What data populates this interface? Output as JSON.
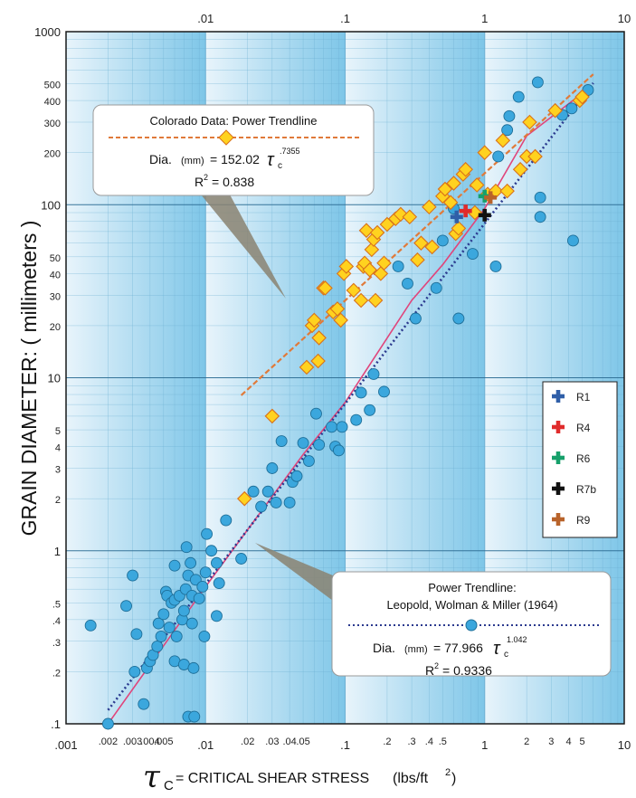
{
  "chart_data": {
    "type": "scatter",
    "xlabel_symbol": "τ",
    "xlabel_sub": "C",
    "xlabel_text": "= CRITICAL SHEAR STRESS",
    "xlabel_units": "(lbs/ft",
    "xlabel_units_sup": "2",
    "xlabel_units_close": ")",
    "ylabel": "GRAIN  DIAMETER:  ( millimeters )",
    "x_scale": "log",
    "y_scale": "log",
    "xlim": [
      0.001,
      10
    ],
    "ylim": [
      0.1,
      1000
    ],
    "x_tick_labels_bottom": [
      {
        "v": 0.001,
        "t": ".001"
      },
      {
        "v": 0.002,
        "t": ".002"
      },
      {
        "v": 0.003,
        "t": ".003"
      },
      {
        "v": 0.004,
        "t": ".004"
      },
      {
        "v": 0.005,
        "t": ".005"
      },
      {
        "v": 0.01,
        "t": ".01"
      },
      {
        "v": 0.02,
        "t": ".02"
      },
      {
        "v": 0.03,
        "t": ".03"
      },
      {
        "v": 0.04,
        "t": ".04"
      },
      {
        "v": 0.05,
        "t": ".05"
      },
      {
        "v": 0.1,
        "t": ".1"
      },
      {
        "v": 0.2,
        "t": ".2"
      },
      {
        "v": 0.3,
        "t": ".3"
      },
      {
        "v": 0.4,
        "t": ".4"
      },
      {
        "v": 0.5,
        "t": ".5"
      },
      {
        "v": 1,
        "t": "1"
      },
      {
        "v": 2,
        "t": "2"
      },
      {
        "v": 3,
        "t": "3"
      },
      {
        "v": 4,
        "t": "4"
      },
      {
        "v": 5,
        "t": "5"
      },
      {
        "v": 10,
        "t": "10"
      }
    ],
    "x_tick_labels_top": [
      {
        "v": 0.01,
        "t": ".01"
      },
      {
        "v": 0.1,
        "t": ".1"
      },
      {
        "v": 1,
        "t": "1"
      },
      {
        "v": 10,
        "t": "10"
      }
    ],
    "y_tick_labels": [
      {
        "v": 1000,
        "t": "1000"
      },
      {
        "v": 500,
        "t": "500"
      },
      {
        "v": 400,
        "t": "400"
      },
      {
        "v": 300,
        "t": "300"
      },
      {
        "v": 200,
        "t": "200"
      },
      {
        "v": 100,
        "t": "100"
      },
      {
        "v": 50,
        "t": "50"
      },
      {
        "v": 40,
        "t": "40"
      },
      {
        "v": 30,
        "t": "30"
      },
      {
        "v": 20,
        "t": "20"
      },
      {
        "v": 10,
        "t": "10"
      },
      {
        "v": 5,
        "t": "5"
      },
      {
        "v": 4,
        "t": "4"
      },
      {
        "v": 3,
        "t": "3"
      },
      {
        "v": 2,
        "t": "2"
      },
      {
        "v": 1,
        "t": "1"
      },
      {
        "v": 0.5,
        "t": ".5"
      },
      {
        "v": 0.4,
        "t": ".4"
      },
      {
        "v": 0.3,
        "t": ".3"
      },
      {
        "v": 0.2,
        "t": ".2"
      },
      {
        "v": 0.1,
        "t": ".1"
      }
    ],
    "grid": true,
    "colors": {
      "circle_fill": "#3ba7dd",
      "circle_stroke": "#1e6f99",
      "diamond_fill": "#ffd21f",
      "diamond_stroke": "#d9721a",
      "colorado_trend": "#e07a3a",
      "leopold_trend": "#2b3a8f",
      "pink_curve": "#e0457b",
      "band_light": "#e8f4fb",
      "band_dark": "#7ec6e8",
      "grid_line": "#6aaed1"
    },
    "series": [
      {
        "marker": "circle",
        "points": [
          [
            0.0015,
            0.37
          ],
          [
            0.002,
            0.1
          ],
          [
            0.0027,
            0.48
          ],
          [
            0.003,
            0.72
          ],
          [
            0.0031,
            0.2
          ],
          [
            0.0032,
            0.33
          ],
          [
            0.0036,
            0.13
          ],
          [
            0.0038,
            0.21
          ],
          [
            0.004,
            0.23
          ],
          [
            0.0042,
            0.25
          ],
          [
            0.0045,
            0.28
          ],
          [
            0.0046,
            0.38
          ],
          [
            0.0048,
            0.32
          ],
          [
            0.005,
            0.43
          ],
          [
            0.0052,
            0.58
          ],
          [
            0.0053,
            0.55
          ],
          [
            0.0055,
            0.36
          ],
          [
            0.0057,
            0.5
          ],
          [
            0.006,
            0.52
          ],
          [
            0.006,
            0.82
          ],
          [
            0.006,
            0.23
          ],
          [
            0.0062,
            0.32
          ],
          [
            0.0065,
            0.55
          ],
          [
            0.0068,
            0.4
          ],
          [
            0.007,
            0.22
          ],
          [
            0.007,
            0.45
          ],
          [
            0.0072,
            0.6
          ],
          [
            0.0073,
            1.05
          ],
          [
            0.0075,
            0.72
          ],
          [
            0.0075,
            0.11
          ],
          [
            0.0078,
            0.85
          ],
          [
            0.008,
            0.55
          ],
          [
            0.008,
            0.38
          ],
          [
            0.0082,
            0.21
          ],
          [
            0.0083,
            0.11
          ],
          [
            0.0085,
            0.68
          ],
          [
            0.009,
            0.53
          ],
          [
            0.0095,
            0.62
          ],
          [
            0.0098,
            0.32
          ],
          [
            0.01,
            0.75
          ],
          [
            0.0102,
            1.25
          ],
          [
            0.011,
            1.0
          ],
          [
            0.012,
            0.42
          ],
          [
            0.012,
            0.85
          ],
          [
            0.0125,
            0.65
          ],
          [
            0.014,
            1.5
          ],
          [
            0.018,
            0.9
          ],
          [
            0.022,
            2.2
          ],
          [
            0.025,
            1.8
          ],
          [
            0.028,
            2.2
          ],
          [
            0.03,
            3.0
          ],
          [
            0.032,
            1.9
          ],
          [
            0.035,
            4.3
          ],
          [
            0.04,
            1.9
          ],
          [
            0.042,
            2.5
          ],
          [
            0.045,
            2.7
          ],
          [
            0.05,
            4.2
          ],
          [
            0.055,
            3.3
          ],
          [
            0.062,
            6.2
          ],
          [
            0.065,
            4.1
          ],
          [
            0.08,
            5.2
          ],
          [
            0.085,
            4.0
          ],
          [
            0.09,
            3.8
          ],
          [
            0.095,
            5.2
          ],
          [
            0.12,
            5.7
          ],
          [
            0.13,
            8.2
          ],
          [
            0.15,
            6.5
          ],
          [
            0.16,
            10.5
          ],
          [
            0.19,
            8.3
          ],
          [
            0.24,
            44
          ],
          [
            0.28,
            35
          ],
          [
            0.32,
            22
          ],
          [
            0.45,
            33
          ],
          [
            0.5,
            62
          ],
          [
            0.6,
            95
          ],
          [
            0.65,
            22
          ],
          [
            0.82,
            52
          ],
          [
            1.2,
            44
          ],
          [
            1.25,
            190
          ],
          [
            1.45,
            270
          ],
          [
            1.5,
            325
          ],
          [
            1.75,
            420
          ],
          [
            2.4,
            510
          ],
          [
            2.5,
            110
          ],
          [
            2.5,
            85
          ],
          [
            3.6,
            330
          ],
          [
            4.2,
            360
          ],
          [
            4.3,
            62
          ],
          [
            5.5,
            460
          ]
        ]
      },
      {
        "marker": "diamond",
        "points": [
          [
            0.019,
            2.0
          ],
          [
            0.03,
            6.0
          ],
          [
            0.053,
            11.5
          ],
          [
            0.058,
            20
          ],
          [
            0.06,
            21.5
          ],
          [
            0.064,
            12.5
          ],
          [
            0.065,
            17
          ],
          [
            0.07,
            33
          ],
          [
            0.072,
            33
          ],
          [
            0.082,
            24
          ],
          [
            0.088,
            25
          ],
          [
            0.093,
            21.5
          ],
          [
            0.098,
            40
          ],
          [
            0.102,
            44
          ],
          [
            0.115,
            32
          ],
          [
            0.13,
            28
          ],
          [
            0.135,
            44
          ],
          [
            0.138,
            46
          ],
          [
            0.142,
            71
          ],
          [
            0.15,
            42
          ],
          [
            0.155,
            55
          ],
          [
            0.16,
            63
          ],
          [
            0.165,
            28
          ],
          [
            0.17,
            69
          ],
          [
            0.18,
            40
          ],
          [
            0.19,
            46
          ],
          [
            0.2,
            77
          ],
          [
            0.23,
            83
          ],
          [
            0.25,
            88
          ],
          [
            0.29,
            85
          ],
          [
            0.33,
            48
          ],
          [
            0.35,
            60
          ],
          [
            0.4,
            97
          ],
          [
            0.42,
            57
          ],
          [
            0.5,
            112
          ],
          [
            0.52,
            123
          ],
          [
            0.57,
            103
          ],
          [
            0.6,
            133
          ],
          [
            0.62,
            68
          ],
          [
            0.65,
            73
          ],
          [
            0.7,
            150
          ],
          [
            0.73,
            160
          ],
          [
            0.85,
            90
          ],
          [
            0.88,
            130
          ],
          [
            1.0,
            200
          ],
          [
            1.05,
            115
          ],
          [
            1.2,
            120
          ],
          [
            1.35,
            235
          ],
          [
            1.45,
            120
          ],
          [
            1.8,
            160
          ],
          [
            2.0,
            190
          ],
          [
            2.1,
            300
          ],
          [
            2.3,
            190
          ],
          [
            3.2,
            350
          ],
          [
            4.8,
            400
          ],
          [
            5.0,
            420
          ]
        ]
      },
      {
        "name": "R1",
        "marker": "cross",
        "color": "#2f5fa8",
        "points": [
          [
            0.63,
            85
          ]
        ]
      },
      {
        "name": "R4",
        "marker": "cross",
        "color": "#e02b2b",
        "points": [
          [
            0.73,
            92
          ]
        ]
      },
      {
        "name": "R6",
        "marker": "cross",
        "color": "#17a06b",
        "points": [
          [
            1.0,
            112
          ]
        ]
      },
      {
        "name": "R7b",
        "marker": "cross",
        "color": "#111111",
        "points": [
          [
            1.0,
            87
          ]
        ]
      },
      {
        "name": "R9",
        "marker": "cross",
        "color": "#b8632a",
        "points": [
          [
            1.1,
            110
          ]
        ]
      }
    ],
    "trendlines": {
      "colorado": {
        "coef": 152.02,
        "exp": 0.7355,
        "x_range": [
          0.018,
          6.0
        ]
      },
      "leopold": {
        "coef": 77.966,
        "exp": 1.042,
        "x_range": [
          0.002,
          6.0
        ]
      },
      "pink_curve": [
        [
          0.002,
          0.1
        ],
        [
          0.01,
          0.62
        ],
        [
          0.05,
          3.6
        ],
        [
          0.1,
          7.2
        ],
        [
          0.3,
          28
        ],
        [
          0.5,
          45
        ],
        [
          1.0,
          95
        ],
        [
          2.0,
          250
        ],
        [
          5.0,
          440
        ]
      ]
    },
    "legend": {
      "placement": "right-center",
      "items": [
        "R1",
        "R4",
        "R6",
        "R7b",
        "R9"
      ]
    },
    "callouts": {
      "colorado": {
        "title": "Colorado Data:  Power Trendline",
        "eq_prefix": "Dia.",
        "eq_unit": "(mm)",
        "eq_rest": "= 152.02",
        "tau": "τ",
        "tau_sub": "c",
        "exp": ".7355",
        "r2_label": "R",
        "r2_sup": "2",
        "r2_value": "= 0.838"
      },
      "leopold": {
        "title1": "Power Trendline:",
        "title2": "Leopold, Wolman & Miller (1964)",
        "eq_prefix": "Dia.",
        "eq_unit": "(mm)",
        "eq_rest": "= 77.966",
        "tau": "τ",
        "tau_sub": "c",
        "exp": "1.042",
        "r2_label": "R",
        "r2_sup": "2",
        "r2_value": "= 0.9336"
      }
    }
  }
}
